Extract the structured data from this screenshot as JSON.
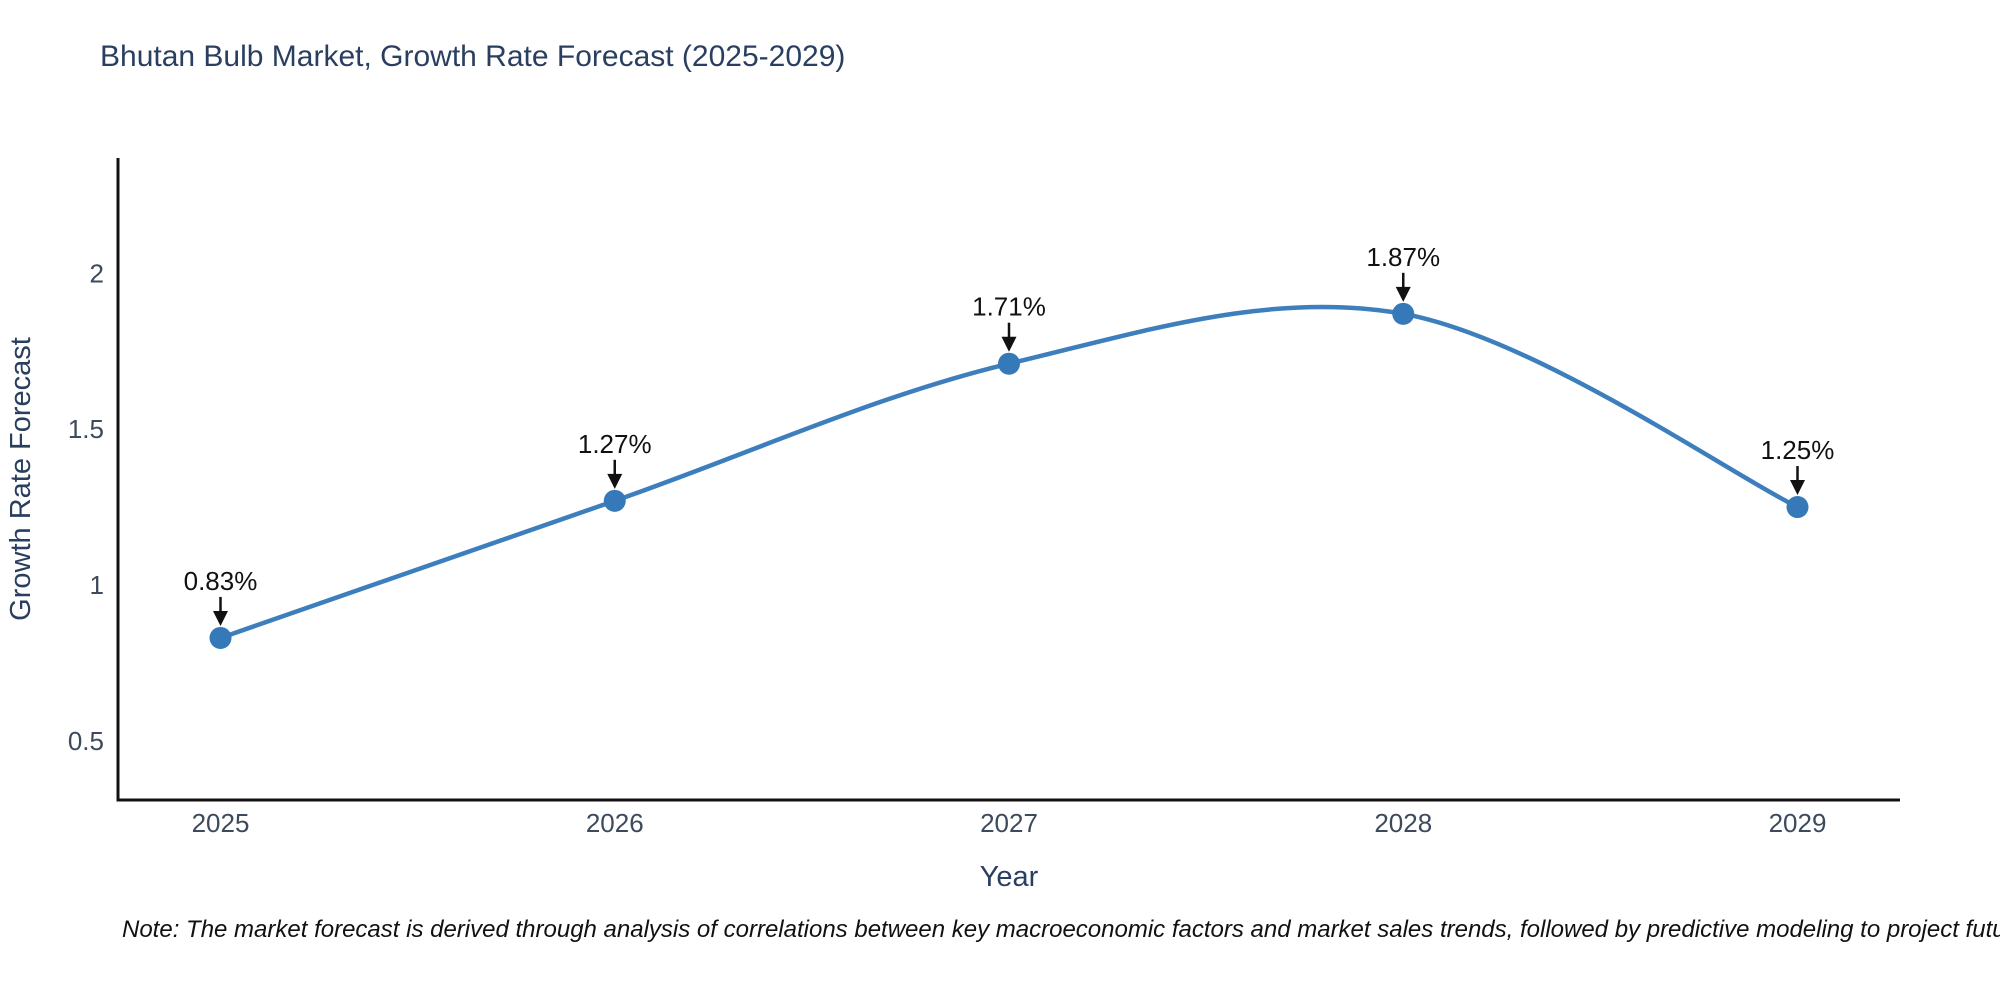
{
  "title": "Bhutan Bulb Market, Growth Rate Forecast (2025-2029)",
  "note": "Note: The market forecast is derived through analysis of correlations between key macroeconomic factors and market sales trends, followed by predictive modeling to project future sales",
  "chart_data": {
    "type": "line",
    "title": "Bhutan Bulb Market, Growth Rate Forecast (2025-2029)",
    "xlabel": "Year",
    "ylabel": "Growth Rate Forecast",
    "x": [
      2025,
      2026,
      2027,
      2028,
      2029
    ],
    "series": [
      {
        "name": "Growth Rate Forecast",
        "values": [
          0.83,
          1.27,
          1.71,
          1.87,
          1.25
        ]
      }
    ],
    "point_labels": [
      "0.83%",
      "1.27%",
      "1.71%",
      "1.87%",
      "1.25%"
    ],
    "xticks": [
      2025,
      2026,
      2027,
      2028,
      2029
    ],
    "yticks": [
      0.5,
      1,
      1.5,
      2
    ],
    "xlim": [
      2024.74,
      2029.26
    ],
    "ylim": [
      0.31,
      2.37
    ],
    "grid": false,
    "legend": false,
    "line_shape": "spline",
    "colors": {
      "line": "#3d7ebd",
      "marker": "#3579b8",
      "axis": "#111111",
      "tick_text": "#3c4a5c",
      "title_text": "#2a3f5f",
      "annotation_text": "#111111"
    }
  }
}
